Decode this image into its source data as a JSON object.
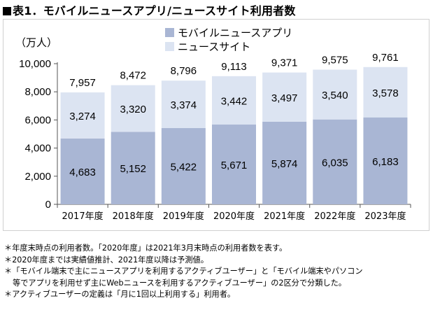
{
  "title": "表1．モバイルニュースアプリ/ニュースサイト利用者数",
  "chart_data": {
    "type": "bar",
    "stacked": true,
    "categories": [
      "2017年度",
      "2018年度",
      "2019年度",
      "2020年度",
      "2021年度",
      "2022年度",
      "2023年度"
    ],
    "series": [
      {
        "name": "モバイルニュースアプリ",
        "values": [
          4683,
          5152,
          5422,
          5671,
          5874,
          6035,
          6183
        ],
        "color": "#a9b6d4"
      },
      {
        "name": "ニュースサイト",
        "values": [
          3274,
          3320,
          3374,
          3442,
          3497,
          3540,
          3578
        ],
        "color": "#dce4f2"
      }
    ],
    "totals": [
      7957,
      8472,
      8796,
      9113,
      9371,
      9575,
      9761
    ],
    "ylabel": "（万人）",
    "ylim": [
      0,
      10000
    ],
    "yticks": [
      0,
      2000,
      4000,
      6000,
      8000,
      10000
    ],
    "ytick_labels": [
      "0",
      "2,000",
      "4,000",
      "6,000",
      "8,000",
      "10,000"
    ],
    "grid": false,
    "legend_position": "top"
  },
  "notes": [
    "＊年度末時点の利用者数。「2020年度」は2021年3月末時点の利用者数を表す。",
    "＊2020年度までは実績値推計、2021年度以降は予測値。",
    "＊「モバイル端末で主にニュースアプリを利用するアクティブユーザー」と「モバイル端末やパソコン",
    "等でアプリを利用せず主にWebニュースを利用するアクティブユーザー」の2区分で分類した。",
    "＊アクティブユーザーの定義は「月に1回以上利用する」利用者。"
  ]
}
